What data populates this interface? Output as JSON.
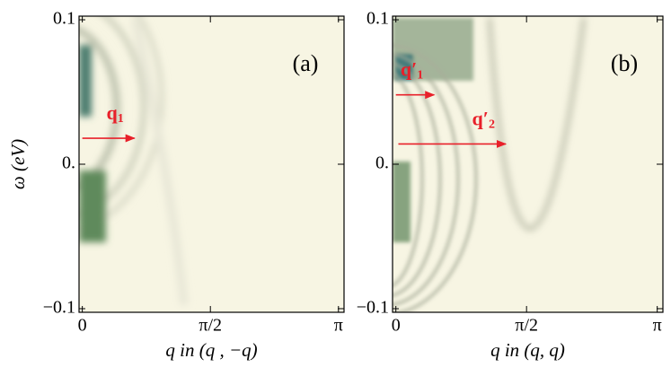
{
  "chart_data": [
    {
      "type": "heatmap",
      "panel_label": "(a)",
      "xlabel": "q  in (q , −q)",
      "ylabel": "ω (eV)",
      "xlim": [
        -0.04,
        3.21
      ],
      "ylim": [
        -0.1025,
        0.1025
      ],
      "xticks": [
        0,
        {
          "value": 1.5708,
          "label": "π/2"
        },
        {
          "value": 3.1416,
          "label": "π"
        }
      ],
      "yticks": [
        {
          "value": -0.1,
          "label": "−0.1"
        },
        {
          "value": 0,
          "label": "0."
        },
        0.1
      ],
      "annotations": [
        {
          "text": "q",
          "subscript": "1",
          "x": [
            0,
            0.64
          ],
          "y": 0.018
        }
      ]
    },
    {
      "type": "heatmap",
      "panel_label": "(b)",
      "xlabel": "q  in (q, q)",
      "xlim": [
        -0.04,
        3.21
      ],
      "ylim": [
        -0.1025,
        0.1025
      ],
      "xticks": [
        0,
        {
          "value": 1.5708,
          "label": "π/2"
        },
        {
          "value": 3.1416,
          "label": "π"
        }
      ],
      "yticks": [
        {
          "value": -0.1,
          "label": "−0.1"
        },
        {
          "value": 0,
          "label": "0."
        },
        0.1
      ],
      "annotations": [
        {
          "text": "q′",
          "subscript": "1",
          "x": [
            0,
            0.46
          ],
          "y": 0.048
        },
        {
          "text": "q′",
          "subscript": "2",
          "x": [
            0.03,
            1.32
          ],
          "y": 0.014
        }
      ]
    }
  ]
}
